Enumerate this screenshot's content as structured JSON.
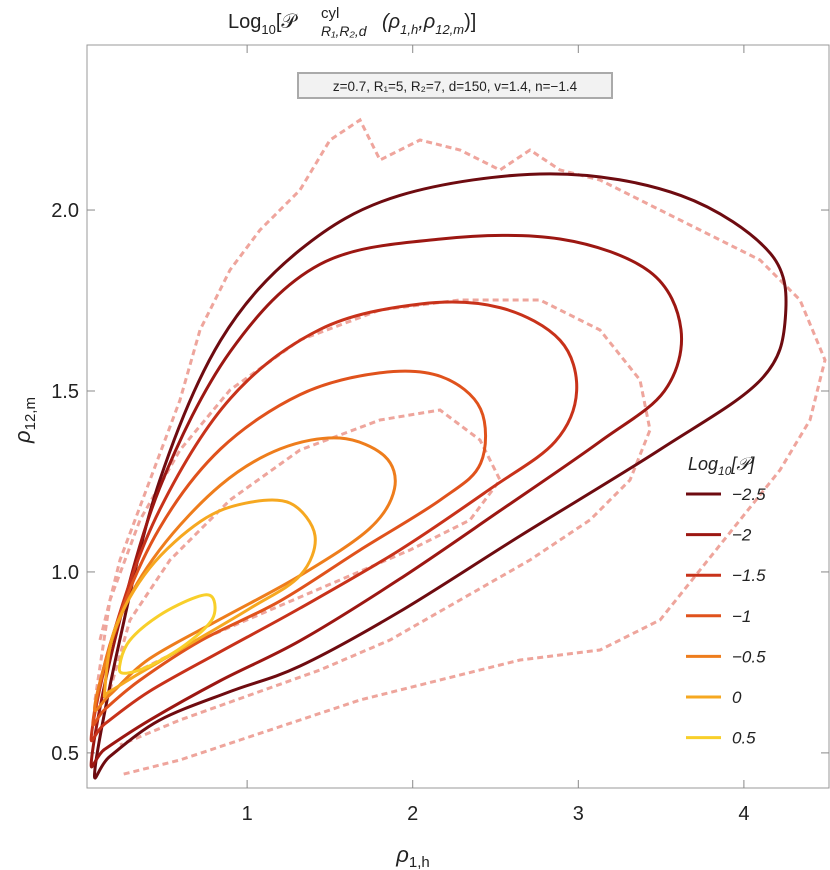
{
  "chart_data": {
    "type": "contour",
    "title_parts": [
      "Log",
      "10",
      "[𝒫",
      "cyl",
      "R₁,R₂,d",
      "(ρ",
      "1,h",
      ",ρ",
      "12,m",
      ")]"
    ],
    "annotation": "z=0.7, R₁=5, R₂=7, d=150, v=1.4, n=−1.4",
    "xlabel_parts": [
      "ρ",
      "1,h"
    ],
    "ylabel_parts": [
      "ρ",
      "12,m"
    ],
    "legend_title_parts": [
      "Log",
      "10",
      "[𝒫]"
    ],
    "legend_position": "right",
    "xlim": [
      0.033,
      4.52
    ],
    "ylim": [
      0.403,
      2.456
    ],
    "xticks": [
      1,
      2,
      3,
      4
    ],
    "yticks": [
      0.5,
      {
        "value": 1,
        "label": "1.0"
      },
      1.5,
      {
        "value": 2,
        "label": "2.0"
      }
    ],
    "series": [
      {
        "name": "−2.5",
        "color": "#6e0b10",
        "x": [
          0.08,
          0.23,
          0.47,
          0.84,
          1.32,
          1.92,
          2.83,
          3.62,
          4.16,
          4.25,
          4.1,
          3.5,
          2.65,
          1.92,
          1.32,
          0.9,
          0.47,
          0.17
        ],
        "y": [
          0.45,
          0.81,
          1.25,
          1.64,
          1.89,
          2.04,
          2.1,
          2.04,
          1.88,
          1.7,
          1.53,
          1.34,
          1.1,
          0.89,
          0.74,
          0.67,
          0.59,
          0.49
        ]
      },
      {
        "name": "−2",
        "color": "#9c1712",
        "x": [
          0.06,
          0.2,
          0.47,
          0.9,
          1.44,
          2.17,
          2.89,
          3.43,
          3.62,
          3.52,
          3.13,
          2.53,
          1.92,
          1.32,
          0.84,
          0.41,
          0.14
        ],
        "y": [
          0.48,
          0.81,
          1.23,
          1.61,
          1.85,
          1.92,
          1.92,
          1.83,
          1.67,
          1.5,
          1.36,
          1.17,
          0.98,
          0.81,
          0.7,
          0.59,
          0.51
        ]
      },
      {
        "name": "−1.5",
        "color": "#c8321a",
        "x": [
          0.06,
          0.2,
          0.47,
          0.9,
          1.44,
          2.04,
          2.53,
          2.89,
          2.99,
          2.86,
          2.47,
          1.92,
          1.32,
          0.84,
          0.41,
          0.14
        ],
        "y": [
          0.55,
          0.84,
          1.17,
          1.48,
          1.67,
          1.74,
          1.73,
          1.64,
          1.5,
          1.36,
          1.23,
          1.06,
          0.9,
          0.78,
          0.67,
          0.58
        ]
      },
      {
        "name": "−1",
        "color": "#e0521c",
        "x": [
          0.07,
          0.2,
          0.47,
          0.84,
          1.32,
          1.8,
          2.17,
          2.41,
          2.41,
          2.17,
          1.68,
          1.2,
          0.72,
          0.35,
          0.14
        ],
        "y": [
          0.59,
          0.84,
          1.12,
          1.34,
          1.49,
          1.55,
          1.54,
          1.45,
          1.3,
          1.2,
          1.06,
          0.92,
          0.81,
          0.7,
          0.62
        ]
      },
      {
        "name": "−0.5",
        "color": "#ee7d1c",
        "x": [
          0.08,
          0.23,
          0.47,
          0.84,
          1.2,
          1.56,
          1.83,
          1.89,
          1.74,
          1.32,
          0.84,
          0.41,
          0.17
        ],
        "y": [
          0.63,
          0.87,
          1.06,
          1.24,
          1.34,
          1.37,
          1.32,
          1.23,
          1.12,
          0.99,
          0.87,
          0.76,
          0.66
        ]
      },
      {
        "name": "0",
        "color": "#f6a820",
        "x": [
          0.14,
          0.2,
          0.41,
          0.72,
          0.99,
          1.26,
          1.41,
          1.32,
          1.02,
          0.65,
          0.35,
          0.17
        ],
        "y": [
          0.67,
          0.84,
          1.01,
          1.14,
          1.19,
          1.19,
          1.1,
          0.99,
          0.9,
          0.8,
          0.72,
          0.67
        ]
      },
      {
        "name": "0.5",
        "color": "#f8cf2a",
        "x": [
          0.23,
          0.29,
          0.47,
          0.69,
          0.79,
          0.79,
          0.63,
          0.41,
          0.26
        ],
        "y": [
          0.74,
          0.81,
          0.88,
          0.93,
          0.93,
          0.87,
          0.8,
          0.74,
          0.72
        ]
      }
    ]
  }
}
